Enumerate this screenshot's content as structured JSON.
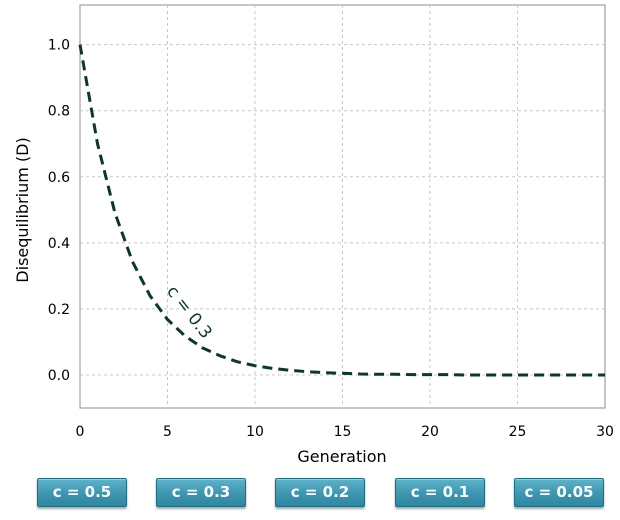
{
  "chart_data": {
    "type": "line",
    "xlabel": "Generation",
    "ylabel": "Disequilibrium (D)",
    "xlim": [
      0,
      30
    ],
    "ylim": [
      -0.1,
      1.12
    ],
    "x_ticks": [
      0,
      5,
      10,
      15,
      20,
      25,
      30
    ],
    "y_ticks": [
      0.0,
      0.2,
      0.4,
      0.6,
      0.8,
      1.0
    ],
    "x_tick_labels": [
      "0",
      "5",
      "10",
      "15",
      "20",
      "25",
      "30"
    ],
    "y_tick_labels": [
      "0.0",
      "0.2",
      "0.4",
      "0.6",
      "0.8",
      "1.0"
    ],
    "grid": true,
    "series": [
      {
        "color": "#0b3a1f",
        "style": "dashed",
        "x": [
          0,
          1,
          2,
          3,
          4,
          5,
          6,
          7,
          8,
          9,
          10,
          11,
          12,
          13,
          14,
          15,
          16,
          17,
          18,
          19,
          20,
          21,
          22,
          23,
          24,
          25,
          26,
          27,
          28,
          29,
          30
        ],
        "y": [
          1.0,
          0.7,
          0.49,
          0.343,
          0.24,
          0.168,
          0.118,
          0.082,
          0.058,
          0.04,
          0.028,
          0.02,
          0.014,
          0.01,
          0.007,
          0.005,
          0.003,
          0.002,
          0.002,
          0.001,
          0.001,
          0.001,
          0.0,
          0.0,
          0.0,
          0.0,
          0.0,
          0.0,
          0.0,
          0.0,
          0.0
        ]
      }
    ],
    "annotations": [
      {
        "text": "c = 0.3",
        "x": 6.0,
        "y": 0.18
      }
    ]
  },
  "buttons": [
    {
      "label": "c = 0.5"
    },
    {
      "label": "c = 0.3"
    },
    {
      "label": "c = 0.2"
    },
    {
      "label": "c = 0.1"
    },
    {
      "label": "c = 0.05"
    }
  ]
}
